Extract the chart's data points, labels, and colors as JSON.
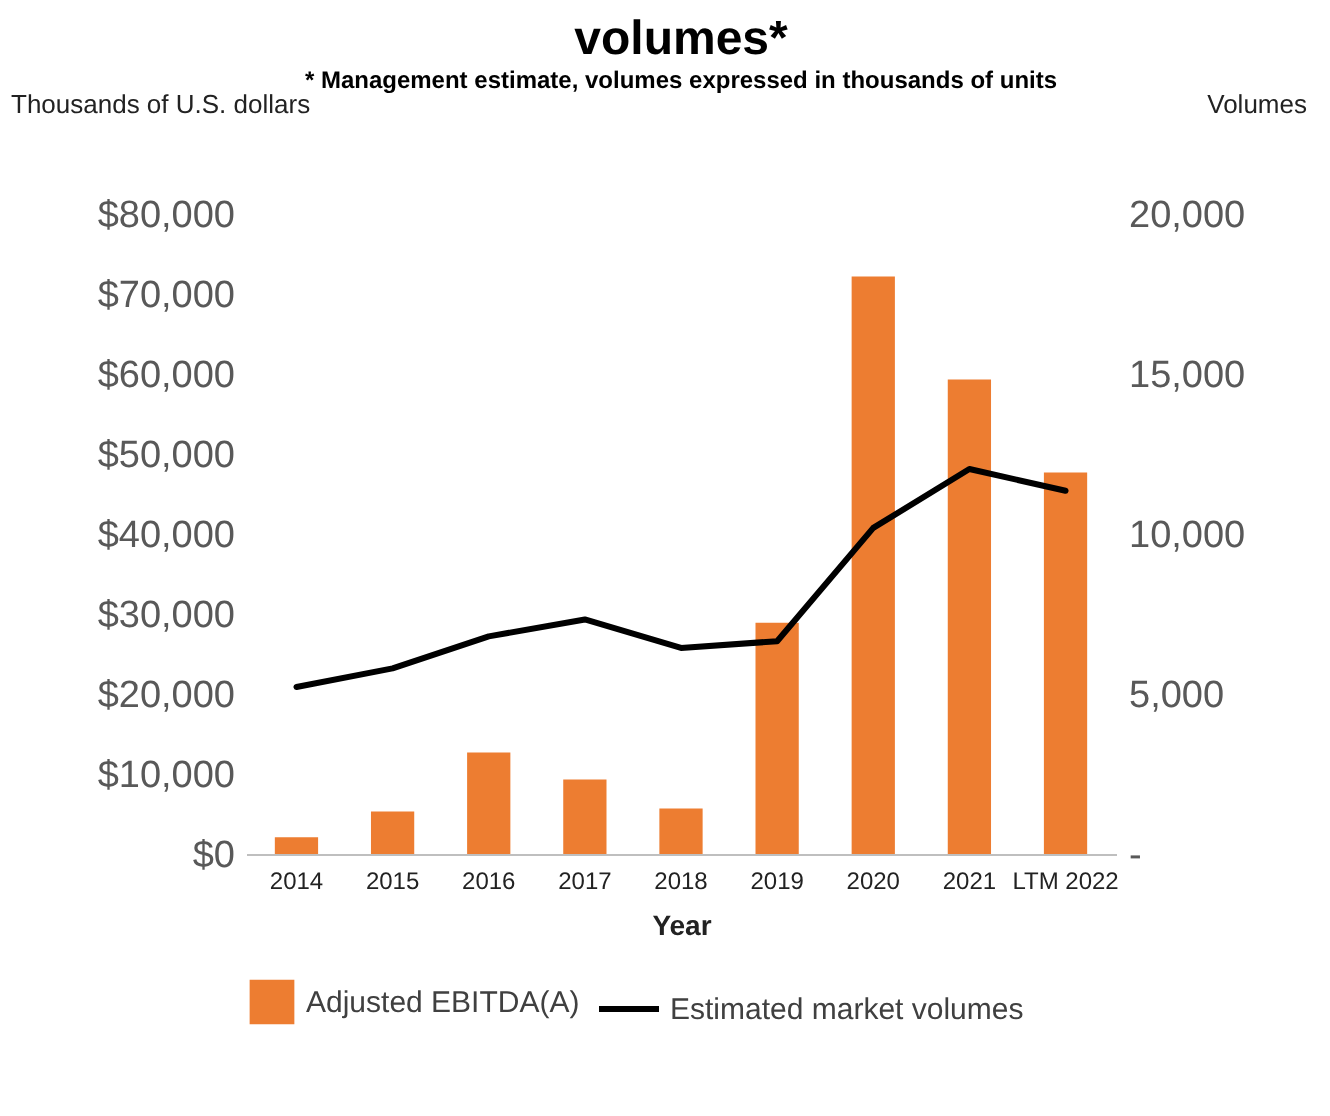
{
  "chart_data": {
    "type": "bar",
    "title": "volumes*",
    "subtitle": "* Management estimate, volumes expressed in thousands of units",
    "xlabel": "Year",
    "ylabel": "Thousands of U.S. dollars",
    "y2label": "Volumes",
    "categories": [
      "2014",
      "2015",
      "2016",
      "2017",
      "2018",
      "2019",
      "2020",
      "2021",
      "LTM 2022"
    ],
    "series": [
      {
        "name": "Adjusted EBITDA(A)",
        "color": "#ed7d31",
        "values": [
          2100,
          5300,
          12700,
          9300,
          5700,
          28900,
          72200,
          59300,
          47700
        ]
      },
      {
        "name": "Estimated market volumes",
        "type": "line",
        "color": "#000000",
        "axis": "y2",
        "values": [
          5220,
          5800,
          6800,
          7330,
          6440,
          6650,
          10190,
          12030,
          11350
        ]
      }
    ],
    "ylim": [
      0,
      80000
    ],
    "yticks": [
      {
        "value": 0,
        "label": "$0"
      },
      {
        "value": 10000,
        "label": "$10,000"
      },
      {
        "value": 20000,
        "label": "$20,000"
      },
      {
        "value": 30000,
        "label": "$30,000"
      },
      {
        "value": 40000,
        "label": "$40,000"
      },
      {
        "value": 50000,
        "label": "$50,000"
      },
      {
        "value": 60000,
        "label": "$60,000"
      },
      {
        "value": 70000,
        "label": "$70,000"
      },
      {
        "value": 80000,
        "label": "$80,000"
      }
    ],
    "y2lim": [
      0,
      20000
    ],
    "y2ticks": [
      {
        "value": 0,
        "label": "-"
      },
      {
        "value": 5000,
        "label": "5,000"
      },
      {
        "value": 10000,
        "label": "10,000"
      },
      {
        "value": 15000,
        "label": "15,000"
      },
      {
        "value": 20000,
        "label": "20,000"
      }
    ],
    "legend": "bottom",
    "grid": false,
    "marker": "none",
    "line_style": "solid"
  }
}
